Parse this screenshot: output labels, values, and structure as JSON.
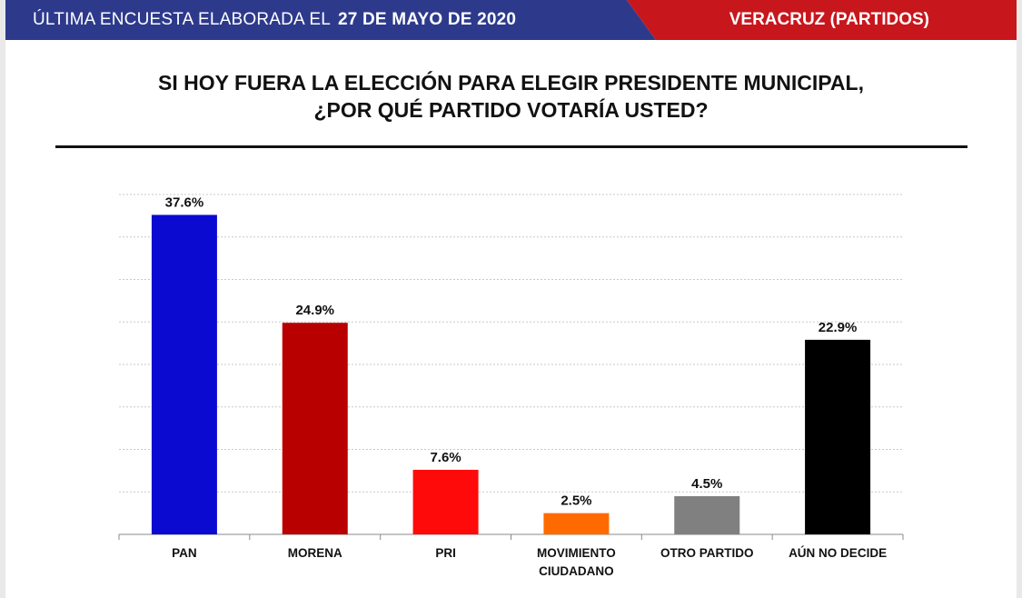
{
  "header": {
    "prefix": "ÚLTIMA ENCUESTA ELABORADA EL",
    "date": "27 DE MAYO DE 2020",
    "region": "VERACRUZ (PARTIDOS)",
    "colors": {
      "left": "#2d3a8c",
      "right": "#c8161d"
    }
  },
  "chart_data": {
    "type": "bar",
    "title_line1": "SI HOY FUERA LA ELECCIÓN PARA ELEGIR PRESIDENTE MUNICIPAL,",
    "title_line2": "¿POR QUÉ PARTIDO VOTARÍA USTED?",
    "categories": [
      "PAN",
      "MORENA",
      "PRI",
      "MOVIMIENTO CIUDADANO",
      "OTRO PARTIDO",
      "AÚN NO DECIDE"
    ],
    "category_lines": [
      [
        "PAN"
      ],
      [
        "MORENA"
      ],
      [
        "PRI"
      ],
      [
        "MOVIMIENTO",
        "CIUDADANO"
      ],
      [
        "OTRO PARTIDO"
      ],
      [
        "AÚN NO DECIDE"
      ]
    ],
    "values": [
      37.6,
      24.9,
      7.6,
      2.5,
      4.5,
      22.9
    ],
    "value_labels": [
      "37.6%",
      "24.9%",
      "7.6%",
      "2.5%",
      "4.5%",
      "22.9%"
    ],
    "colors": [
      "#0a0ad0",
      "#b80000",
      "#ff0a0a",
      "#ff6a00",
      "#808080",
      "#000000"
    ],
    "ylim": [
      0,
      40
    ],
    "grid": true,
    "xlabel": "",
    "ylabel": ""
  }
}
